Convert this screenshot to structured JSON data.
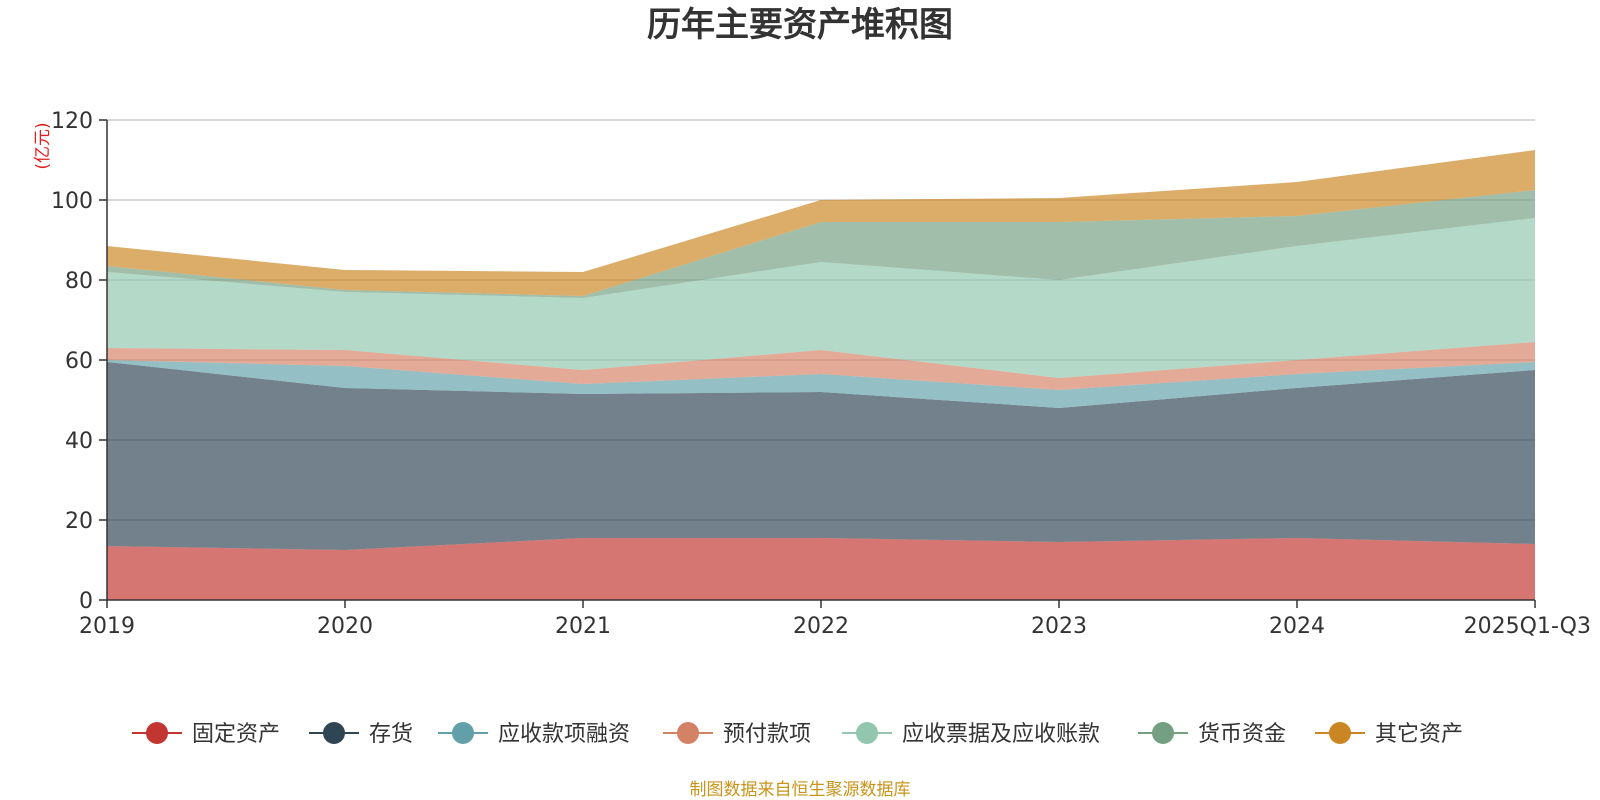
{
  "chart_data": {
    "type": "area",
    "stacked": true,
    "title": "历年主要资产堆积图",
    "unit_label": "(亿元)",
    "xlabel": "",
    "ylabel": "(亿元)",
    "ylim": [
      0,
      120
    ],
    "yticks": [
      0,
      20,
      40,
      60,
      80,
      100,
      120
    ],
    "categories": [
      "2019",
      "2020",
      "2021",
      "2022",
      "2023",
      "2024",
      "2025Q1-Q3"
    ],
    "series": [
      {
        "name": "固定资产",
        "color": "#c23531",
        "values": [
          13.5,
          12.5,
          15.5,
          15.5,
          14.5,
          15.5,
          14.0
        ]
      },
      {
        "name": "存货",
        "color": "#2f4554",
        "values": [
          46.0,
          40.5,
          36.0,
          36.5,
          33.5,
          37.5,
          43.5
        ]
      },
      {
        "name": "应收款项融资",
        "color": "#61a0a8",
        "values": [
          0.5,
          5.5,
          2.5,
          4.5,
          4.5,
          3.5,
          2.0
        ]
      },
      {
        "name": "预付款项",
        "color": "#d48265",
        "values": [
          3.0,
          4.0,
          3.5,
          6.0,
          3.0,
          3.5,
          5.0
        ]
      },
      {
        "name": "应收票据及应收账款",
        "color": "#91c7ae",
        "values": [
          19.0,
          14.5,
          18.0,
          22.0,
          24.5,
          28.5,
          31.0
        ]
      },
      {
        "name": "货币资金",
        "color": "#749f83",
        "values": [
          1.5,
          0.5,
          0.5,
          10.0,
          14.5,
          7.5,
          7.0
        ]
      },
      {
        "name": "其它资产",
        "color": "#ca8622",
        "values": [
          5.0,
          5.0,
          6.0,
          5.5,
          6.0,
          8.5,
          10.0
        ]
      }
    ],
    "legend_position": "bottom",
    "grid": true
  },
  "source_note": "制图数据来自恒生聚源数据库"
}
